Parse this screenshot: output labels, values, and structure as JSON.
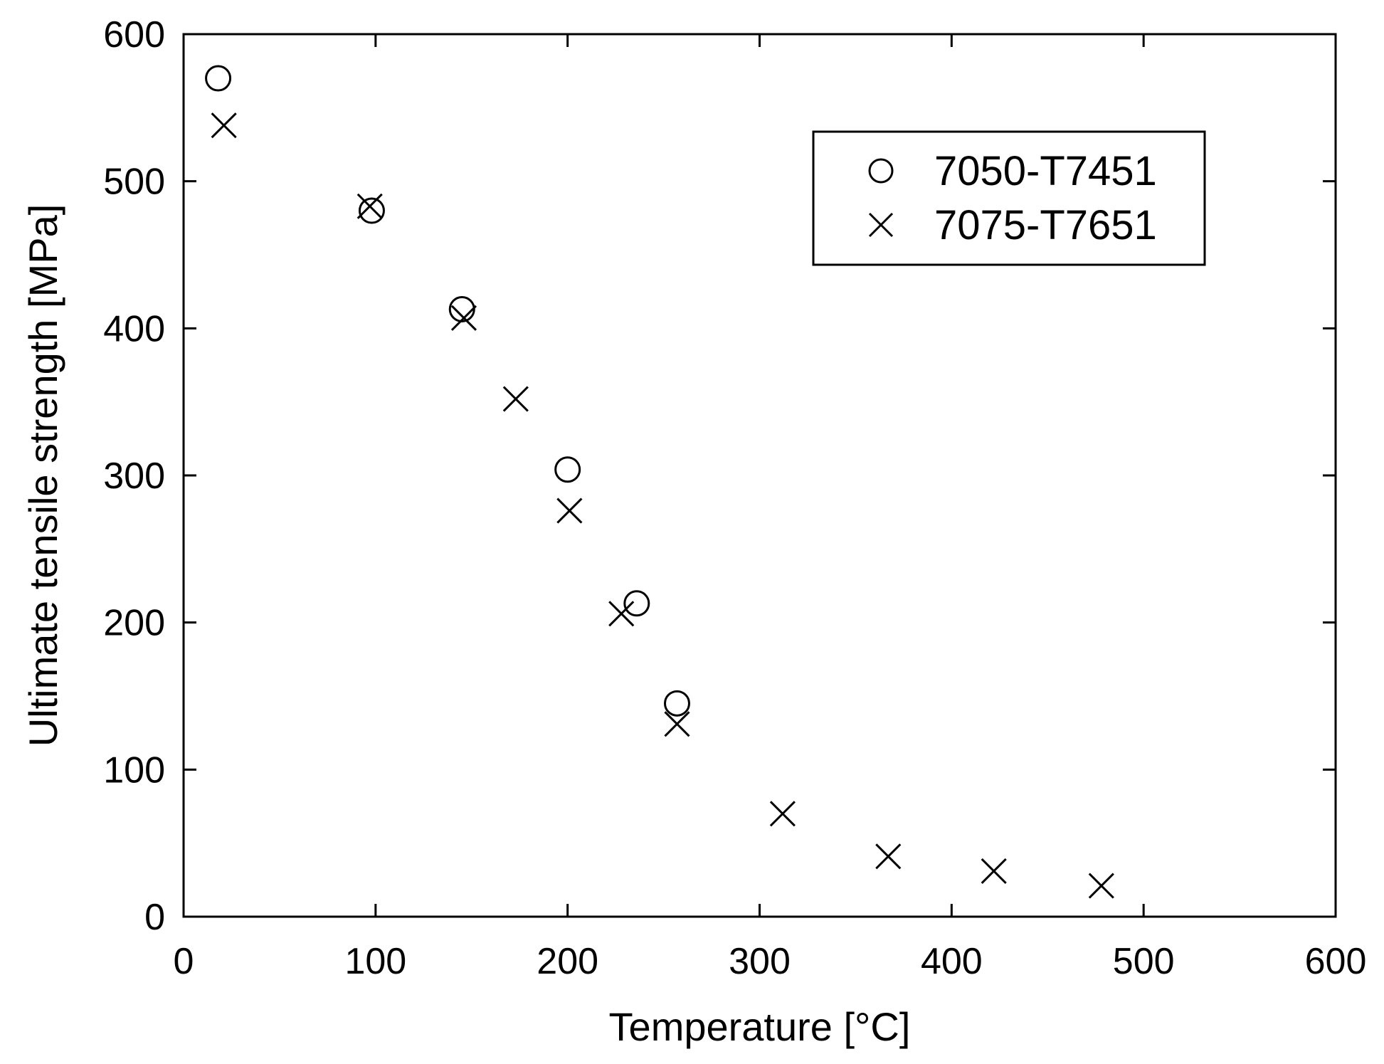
{
  "chart_data": {
    "type": "scatter",
    "title": "",
    "xlabel": "Temperature  [°C]",
    "ylabel": "Ultimate tensile strength  [MPa]",
    "xlim": [
      0,
      600
    ],
    "ylim": [
      0,
      600
    ],
    "xticks": [
      0,
      100,
      200,
      300,
      400,
      500,
      600
    ],
    "yticks": [
      0,
      100,
      200,
      300,
      400,
      500,
      600
    ],
    "grid": false,
    "legend_position": "top-right",
    "series": [
      {
        "name": "7050-T7451",
        "marker": "circle",
        "color": "#000000",
        "points": [
          {
            "x": 18,
            "y": 570
          },
          {
            "x": 98,
            "y": 480
          },
          {
            "x": 145,
            "y": 413
          },
          {
            "x": 200,
            "y": 304
          },
          {
            "x": 236,
            "y": 213
          },
          {
            "x": 257,
            "y": 145
          }
        ]
      },
      {
        "name": "7075-T7651",
        "marker": "x",
        "color": "#000000",
        "points": [
          {
            "x": 21,
            "y": 538
          },
          {
            "x": 97,
            "y": 483
          },
          {
            "x": 146,
            "y": 407
          },
          {
            "x": 173,
            "y": 352
          },
          {
            "x": 201,
            "y": 276
          },
          {
            "x": 228,
            "y": 206
          },
          {
            "x": 257,
            "y": 131
          },
          {
            "x": 312,
            "y": 70
          },
          {
            "x": 367,
            "y": 41
          },
          {
            "x": 422,
            "y": 31
          },
          {
            "x": 478,
            "y": 21
          }
        ]
      }
    ]
  }
}
